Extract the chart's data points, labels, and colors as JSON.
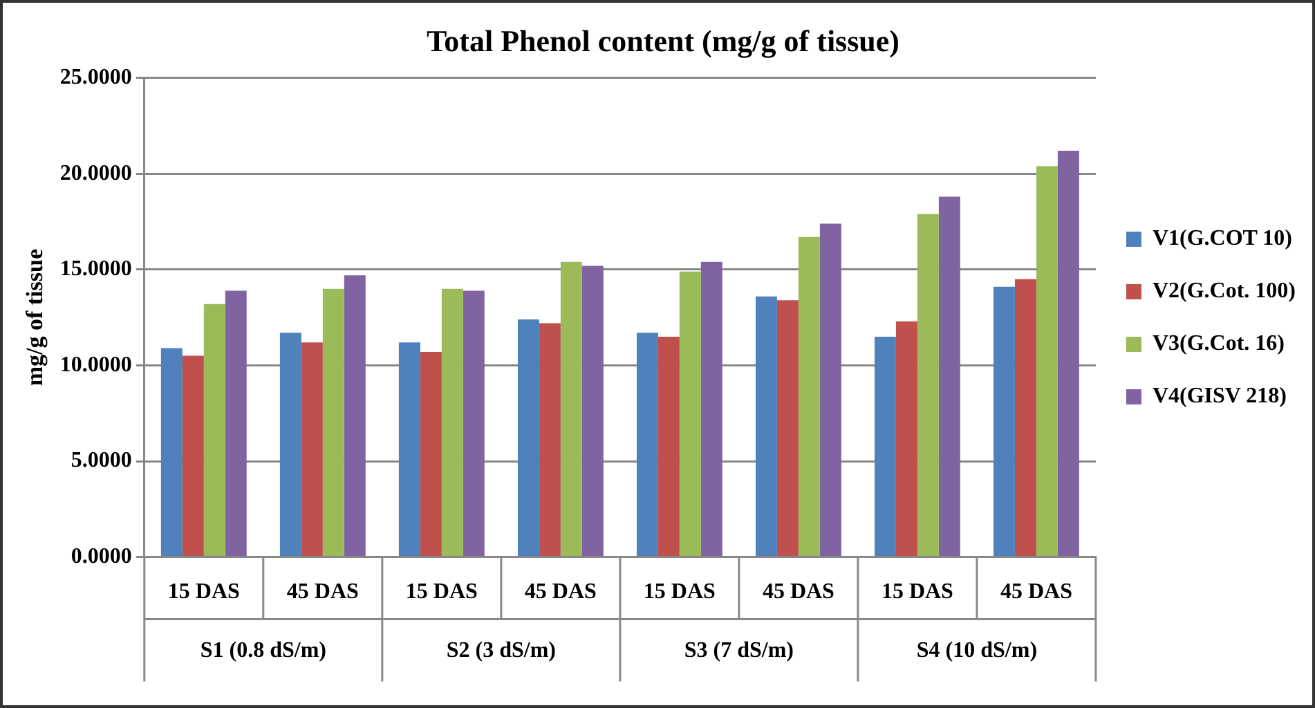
{
  "chart_data": {
    "type": "bar",
    "title": "Total Phenol content (mg/g of tissue)",
    "ylabel": "mg/g of tissue",
    "categories": [
      "15 DAS",
      "45 DAS",
      "15 DAS",
      "45 DAS",
      "15 DAS",
      "45 DAS",
      "15 DAS",
      "45 DAS"
    ],
    "annotations": [
      "S1 (0.8 dS/m)",
      "S2 (3 dS/m)",
      "S3 (7 dS/m)",
      "S4 (10 dS/m)"
    ],
    "series": [
      {
        "name": "V1(G.COT 10)",
        "color": "#4f81bd",
        "values": [
          10.9,
          11.7,
          11.2,
          12.4,
          11.7,
          13.6,
          11.5,
          14.1
        ]
      },
      {
        "name": "V2(G.Cot. 100)",
        "color": "#c0504d",
        "values": [
          10.5,
          11.2,
          10.7,
          12.2,
          11.5,
          13.4,
          12.3,
          14.5
        ]
      },
      {
        "name": "V3(G.Cot. 16)",
        "color": "#9bbb59",
        "values": [
          13.2,
          14.0,
          14.0,
          15.4,
          14.9,
          16.7,
          17.9,
          20.4
        ]
      },
      {
        "name": "V4(GISV 218)",
        "color": "#8064a2",
        "values": [
          13.9,
          14.7,
          13.9,
          15.2,
          15.4,
          17.4,
          18.8,
          21.2
        ]
      }
    ],
    "ylim": [
      0,
      25
    ],
    "yticks": [
      {
        "value": 0,
        "label": "0.0000"
      },
      {
        "value": 5,
        "label": "5.0000"
      },
      {
        "value": 10,
        "label": "10.0000"
      },
      {
        "value": 15,
        "label": "15.0000"
      },
      {
        "value": 20,
        "label": "20.0000"
      },
      {
        "value": 25,
        "label": "25.0000"
      }
    ],
    "grid": "y",
    "legend": "right"
  }
}
